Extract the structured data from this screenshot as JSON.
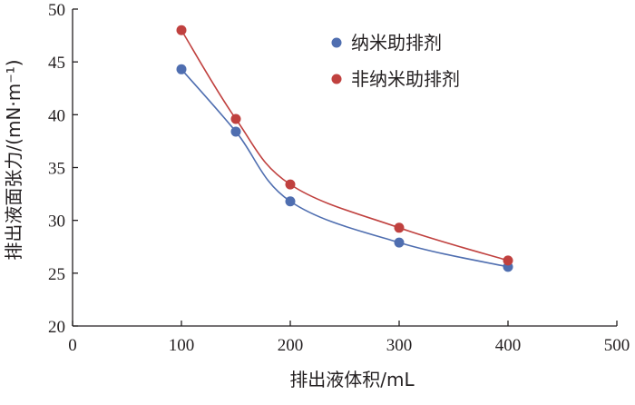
{
  "chart_data": {
    "type": "line",
    "xlabel": "排出液体积/mL",
    "ylabel": "排出液面张力/(mN·m⁻¹)",
    "xlim": [
      0,
      500
    ],
    "ylim": [
      20,
      50
    ],
    "x_ticks": [
      0,
      100,
      200,
      300,
      400,
      500
    ],
    "y_ticks": [
      20,
      25,
      30,
      35,
      40,
      45,
      50
    ],
    "grid": false,
    "legend_position": "top-right",
    "series": [
      {
        "name": "纳米助排剂",
        "color": "#4f6eb0",
        "x": [
          100,
          150,
          200,
          300,
          400
        ],
        "y": [
          44.3,
          38.4,
          31.8,
          27.9,
          25.6
        ]
      },
      {
        "name": "非纳米助排剂",
        "color": "#c0413f",
        "x": [
          100,
          150,
          200,
          300,
          400
        ],
        "y": [
          48.0,
          39.6,
          33.4,
          29.3,
          26.2
        ]
      }
    ]
  }
}
